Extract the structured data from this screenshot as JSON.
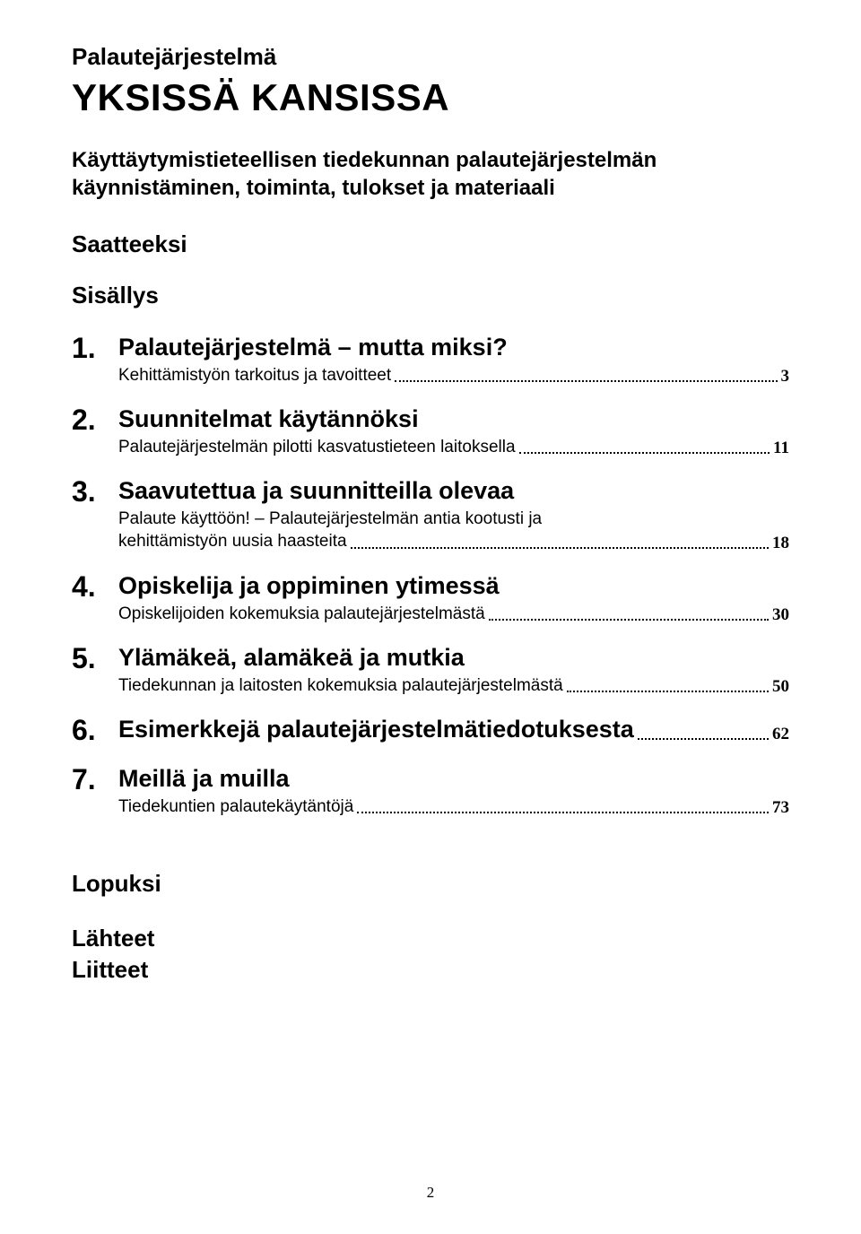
{
  "pretitle": "Palautejärjestelmä",
  "main_title": "YKSISSÄ KANSISSA",
  "subtitle_line1": "Käyttäytymistieteellisen tiedekunnan palautejärjestelmän",
  "subtitle_line2": "käynnistäminen, toiminta, tulokset ja materiaali",
  "saatteeksi": "Saatteeksi",
  "sisallys": "Sisällys",
  "toc": [
    {
      "num": "1.",
      "heading": "Palautejärjestelmä – mutta miksi?",
      "desc": "Kehittämistyön tarkoitus ja tavoitteet",
      "page": "3"
    },
    {
      "num": "2.",
      "heading": "Suunnitelmat käytännöksi",
      "desc": "Palautejärjestelmän pilotti kasvatustieteen laitoksella",
      "page": "11"
    },
    {
      "num": "3.",
      "heading": "Saavutettua ja suunnitteilla olevaa",
      "desc_line1": "Palaute käyttöön! – Palautejärjestelmän antia kootusti ja",
      "desc_line2": "kehittämistyön uusia haasteita",
      "page": "18"
    },
    {
      "num": "4.",
      "heading": "Opiskelija ja oppiminen ytimessä",
      "desc": "Opiskelijoiden kokemuksia palautejärjestelmästä",
      "page": "30"
    },
    {
      "num": "5.",
      "heading": "Ylämäkeä, alamäkeä ja mutkia",
      "desc": "Tiedekunnan ja laitosten kokemuksia palautejärjestelmästä",
      "page": "50"
    },
    {
      "num": "6.",
      "heading": "Esimerkkejä palautejärjestelmätiedotuksesta",
      "page": "62"
    },
    {
      "num": "7.",
      "heading": "Meillä ja muilla",
      "desc": "Tiedekuntien palautekäytäntöjä",
      "page": "73"
    }
  ],
  "lopuksi": "Lopuksi",
  "lahteet": "Lähteet",
  "liitteet": "Liitteet",
  "page_number": "2"
}
